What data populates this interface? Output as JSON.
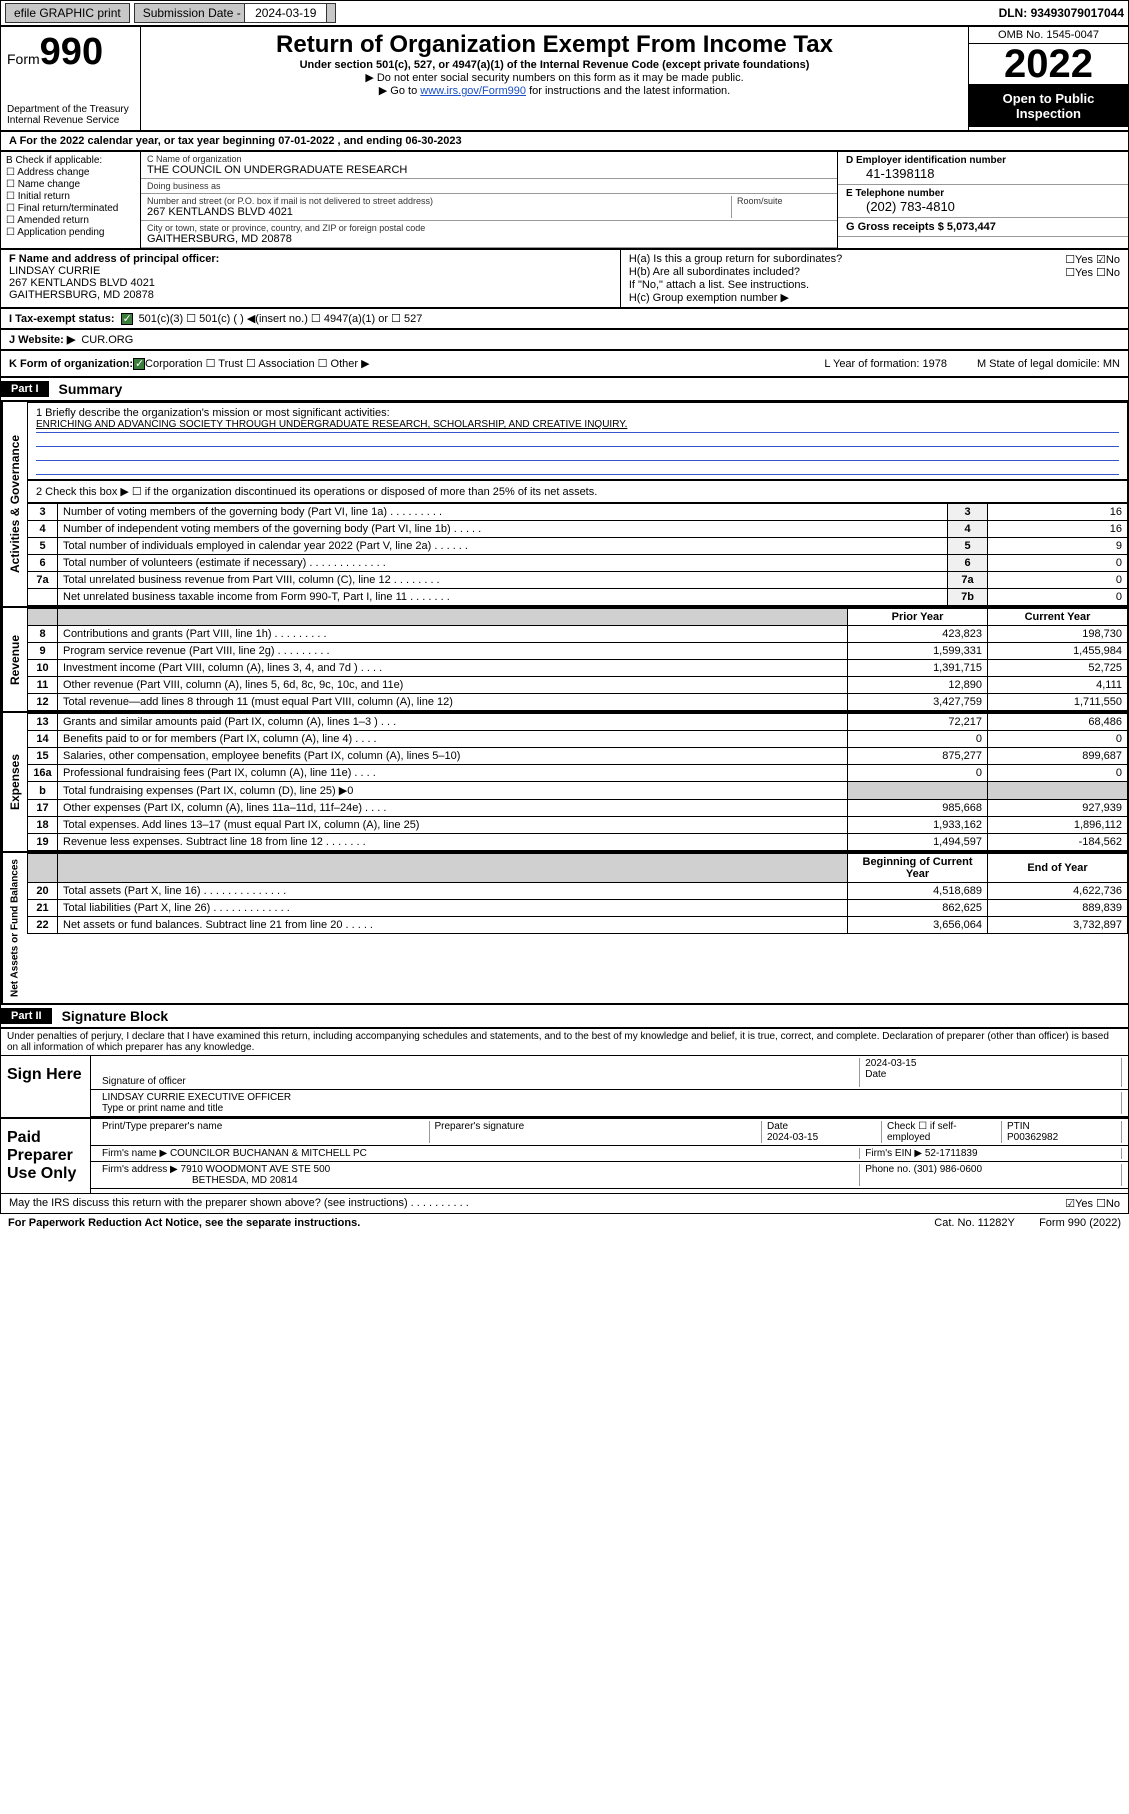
{
  "topbar": {
    "efile": "efile GRAPHIC print",
    "subdate_label": "Submission Date - ",
    "subdate": "2024-03-19",
    "dln_label": "DLN: ",
    "dln": "93493079017044"
  },
  "header": {
    "form_label": "Form",
    "form_num": "990",
    "dept": "Department of the Treasury",
    "irs": "Internal Revenue Service",
    "title": "Return of Organization Exempt From Income Tax",
    "subtitle": "Under section 501(c), 527, or 4947(a)(1) of the Internal Revenue Code (except private foundations)",
    "note1": "▶ Do not enter social security numbers on this form as it may be made public.",
    "note2_pre": "▶ Go to ",
    "note2_link": "www.irs.gov/Form990",
    "note2_post": " for instructions and the latest information.",
    "omb": "OMB No. 1545-0047",
    "year": "2022",
    "otp": "Open to Public Inspection"
  },
  "row_a": "A For the 2022 calendar year, or tax year beginning 07-01-2022   , and ending 06-30-2023",
  "section_b": {
    "header": "B Check if applicable:",
    "items": [
      "Address change",
      "Name change",
      "Initial return",
      "Final return/terminated",
      "Amended return",
      "Application pending"
    ]
  },
  "section_c": {
    "name_label": "C Name of organization",
    "name": "THE COUNCIL ON UNDERGRADUATE RESEARCH",
    "dba_label": "Doing business as",
    "dba": "",
    "addr_label": "Number and street (or P.O. box if mail is not delivered to street address)",
    "room_label": "Room/suite",
    "addr": "267 KENTLANDS BLVD 4021",
    "city_label": "City or town, state or province, country, and ZIP or foreign postal code",
    "city": "GAITHERSBURG, MD  20878"
  },
  "section_de": {
    "d_label": "D Employer identification number",
    "d_val": "41-1398118",
    "e_label": "E Telephone number",
    "e_val": "(202) 783-4810",
    "g_label": "G Gross receipts $ ",
    "g_val": "5,073,447"
  },
  "row_f": {
    "label": "F Name and address of principal officer:",
    "name": "LINDSAY CURRIE",
    "addr1": "267 KENTLANDS BLVD 4021",
    "addr2": "GAITHERSBURG, MD  20878",
    "ha": "H(a)  Is this a group return for subordinates?",
    "ha_yn": "☐Yes ☑No",
    "hb": "H(b)  Are all subordinates included?",
    "hb_yn": "☐Yes ☐No",
    "hb_note": "If \"No,\" attach a list. See instructions.",
    "hc": "H(c)  Group exemption number ▶"
  },
  "row_i": {
    "label": "I   Tax-exempt status:",
    "opts": "501(c)(3)     ☐  501(c) (  ) ◀(insert no.)     ☐ 4947(a)(1) or  ☐ 527"
  },
  "row_j": {
    "label": "J   Website: ▶ ",
    "val": "CUR.ORG"
  },
  "row_k": {
    "label": "K Form of organization:",
    "opts": "Corporation  ☐ Trust  ☐ Association  ☐ Other ▶",
    "l": "L Year of formation: 1978",
    "m": "M State of legal domicile: MN"
  },
  "part1": {
    "header": "Part I",
    "title": "Summary"
  },
  "mission": {
    "q": "1   Briefly describe the organization's mission or most significant activities:",
    "text": "ENRICHING AND ADVANCING SOCIETY THROUGH UNDERGRADUATE RESEARCH, SCHOLARSHIP, AND CREATIVE INQUIRY."
  },
  "governance": {
    "label": "Activities & Governance",
    "line2": "2   Check this box ▶ ☐  if the organization discontinued its operations or disposed of more than 25% of its net assets.",
    "rows": [
      {
        "n": "3",
        "d": "Number of voting members of the governing body (Part VI, line 1a)  .   .   .   .   .   .   .   .   .",
        "b": "3",
        "v": "16"
      },
      {
        "n": "4",
        "d": "Number of independent voting members of the governing body (Part VI, line 1b)  .   .   .   .   .",
        "b": "4",
        "v": "16"
      },
      {
        "n": "5",
        "d": "Total number of individuals employed in calendar year 2022 (Part V, line 2a)  .   .   .   .   .   .",
        "b": "5",
        "v": "9"
      },
      {
        "n": "6",
        "d": "Total number of volunteers (estimate if necessary)  .   .   .   .   .   .   .   .   .   .   .   .   .",
        "b": "6",
        "v": "0"
      },
      {
        "n": "7a",
        "d": "Total unrelated business revenue from Part VIII, column (C), line 12  .   .   .   .   .   .   .   .",
        "b": "7a",
        "v": "0"
      },
      {
        "n": "",
        "d": "Net unrelated business taxable income from Form 990-T, Part I, line 11  .   .   .   .   .   .   .",
        "b": "7b",
        "v": "0"
      }
    ]
  },
  "revenue": {
    "label": "Revenue",
    "header_prior": "Prior Year",
    "header_curr": "Current Year",
    "rows": [
      {
        "n": "8",
        "d": "Contributions and grants (Part VIII, line 1h)  .   .   .   .   .   .   .   .   .",
        "p": "423,823",
        "c": "198,730"
      },
      {
        "n": "9",
        "d": "Program service revenue (Part VIII, line 2g)  .   .   .   .   .   .   .   .   .",
        "p": "1,599,331",
        "c": "1,455,984"
      },
      {
        "n": "10",
        "d": "Investment income (Part VIII, column (A), lines 3, 4, and 7d )  .   .   .   .",
        "p": "1,391,715",
        "c": "52,725"
      },
      {
        "n": "11",
        "d": "Other revenue (Part VIII, column (A), lines 5, 6d, 8c, 9c, 10c, and 11e)",
        "p": "12,890",
        "c": "4,111"
      },
      {
        "n": "12",
        "d": "Total revenue—add lines 8 through 11 (must equal Part VIII, column (A), line 12)",
        "p": "3,427,759",
        "c": "1,711,550"
      }
    ]
  },
  "expenses": {
    "label": "Expenses",
    "rows": [
      {
        "n": "13",
        "d": "Grants and similar amounts paid (Part IX, column (A), lines 1–3 )  .   .   .",
        "p": "72,217",
        "c": "68,486"
      },
      {
        "n": "14",
        "d": "Benefits paid to or for members (Part IX, column (A), line 4)  .   .   .   .",
        "p": "0",
        "c": "0"
      },
      {
        "n": "15",
        "d": "Salaries, other compensation, employee benefits (Part IX, column (A), lines 5–10)",
        "p": "875,277",
        "c": "899,687"
      },
      {
        "n": "16a",
        "d": "Professional fundraising fees (Part IX, column (A), line 11e)  .   .   .   .",
        "p": "0",
        "c": "0"
      },
      {
        "n": "b",
        "d": "Total fundraising expenses (Part IX, column (D), line 25) ▶0",
        "p": "",
        "c": "",
        "gray": true
      },
      {
        "n": "17",
        "d": "Other expenses (Part IX, column (A), lines 11a–11d, 11f–24e)  .   .   .   .",
        "p": "985,668",
        "c": "927,939"
      },
      {
        "n": "18",
        "d": "Total expenses. Add lines 13–17 (must equal Part IX, column (A), line 25)",
        "p": "1,933,162",
        "c": "1,896,112"
      },
      {
        "n": "19",
        "d": "Revenue less expenses. Subtract line 18 from line 12  .   .   .   .   .   .   .",
        "p": "1,494,597",
        "c": "-184,562"
      }
    ]
  },
  "netassets": {
    "label": "Net Assets or Fund Balances",
    "header_begin": "Beginning of Current Year",
    "header_end": "End of Year",
    "rows": [
      {
        "n": "20",
        "d": "Total assets (Part X, line 16)  .   .   .   .   .   .   .   .   .   .   .   .   .   .",
        "p": "4,518,689",
        "c": "4,622,736"
      },
      {
        "n": "21",
        "d": "Total liabilities (Part X, line 26)  .   .   .   .   .   .   .   .   .   .   .   .   .",
        "p": "862,625",
        "c": "889,839"
      },
      {
        "n": "22",
        "d": "Net assets or fund balances. Subtract line 21 from line 20  .   .   .   .   .",
        "p": "3,656,064",
        "c": "3,732,897"
      }
    ]
  },
  "part2": {
    "header": "Part II",
    "title": "Signature Block"
  },
  "sig": {
    "penalties": "Under penalties of perjury, I declare that I have examined this return, including accompanying schedules and statements, and to the best of my knowledge and belief, it is true, correct, and complete. Declaration of preparer (other than officer) is based on all information of which preparer has any knowledge.",
    "sign_here": "Sign Here",
    "sig_officer": "Signature of officer",
    "date": "2024-03-15",
    "date_label": "Date",
    "officer_name": "LINDSAY CURRIE  EXECUTIVE OFFICER",
    "type_label": "Type or print name and title",
    "paid": "Paid Preparer Use Only",
    "prep_name_label": "Print/Type preparer's name",
    "prep_sig_label": "Preparer's signature",
    "prep_date_label": "Date",
    "prep_date": "2024-03-15",
    "check_label": "Check ☐ if self-employed",
    "ptin_label": "PTIN",
    "ptin": "P00362982",
    "firm_name_label": "Firm's name     ▶ ",
    "firm_name": "COUNCILOR BUCHANAN & MITCHELL PC",
    "firm_ein_label": "Firm's EIN ▶ ",
    "firm_ein": "52-1711839",
    "firm_addr_label": "Firm's address ▶ ",
    "firm_addr": "7910 WOODMONT AVE STE 500",
    "firm_city": "BETHESDA, MD  20814",
    "phone_label": "Phone no. ",
    "phone": "(301) 986-0600",
    "irs_discuss": "May the IRS discuss this return with the preparer shown above? (see instructions)   .   .   .   .   .   .   .   .   .   .",
    "irs_yn": "☑Yes  ☐No"
  },
  "footer": {
    "paperwork": "For Paperwork Reduction Act Notice, see the separate instructions.",
    "cat": "Cat. No. 11282Y",
    "form": "Form 990 (2022)"
  }
}
